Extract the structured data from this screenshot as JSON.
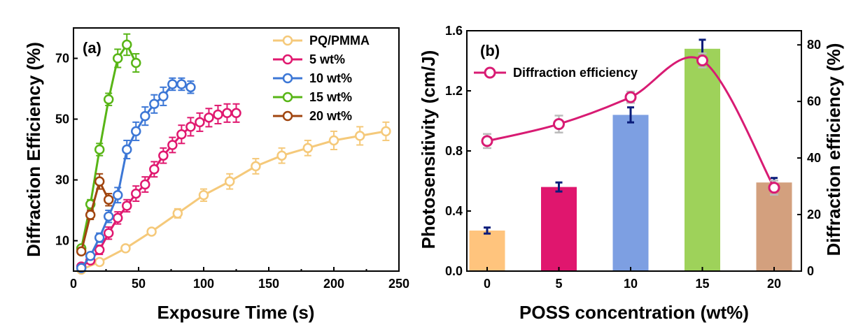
{
  "chart_data": [
    {
      "type": "line",
      "panel_label": "(a)",
      "xlabel": "Exposure Time (s)",
      "ylabel": "Diffraction Efficiency (%)",
      "xlim": [
        0,
        250
      ],
      "ylim": [
        0,
        80
      ],
      "x_ticks": [
        "0",
        "50",
        "100",
        "150",
        "200",
        "250"
      ],
      "y_ticks": [
        "10",
        "30",
        "50",
        "70"
      ],
      "grid": false,
      "legend_position": "top-right",
      "series": [
        {
          "name": "PQ/PMMA",
          "color": "#F5C97A",
          "x": [
            6,
            20,
            40,
            60,
            80,
            100,
            120,
            140,
            160,
            180,
            200,
            220,
            240
          ],
          "y": [
            0.5,
            3,
            7.5,
            13,
            19,
            25,
            29.5,
            34.5,
            38,
            40.5,
            43,
            44.5,
            46
          ],
          "err": [
            0.5,
            1,
            1,
            1,
            1.5,
            2,
            2.5,
            2.5,
            2.5,
            2.5,
            3,
            3,
            3
          ]
        },
        {
          "name": "5 wt%",
          "color": "#E0186F",
          "x": [
            6,
            13,
            20,
            27,
            34,
            41,
            48,
            55,
            62,
            69,
            76,
            83,
            90,
            97,
            104,
            111,
            118,
            125
          ],
          "y": [
            1.5,
            3.5,
            7,
            12.5,
            17.5,
            21.5,
            25.5,
            28.5,
            33.5,
            38,
            41.5,
            45,
            47.5,
            49,
            50.5,
            51.5,
            52,
            52
          ],
          "err": [
            1,
            1,
            1.5,
            2,
            2,
            2,
            2.5,
            2.5,
            2.5,
            2.5,
            2.5,
            3,
            3,
            3,
            3,
            3,
            3,
            3
          ]
        },
        {
          "name": "10 wt%",
          "color": "#3C77D6",
          "x": [
            6,
            13,
            20,
            27,
            34,
            41,
            48,
            55,
            62,
            69,
            76,
            83,
            90
          ],
          "y": [
            1,
            5,
            11,
            18,
            25,
            40,
            46,
            51,
            55,
            57.5,
            61.5,
            61.5,
            60.5
          ],
          "err": [
            1,
            1,
            1.5,
            2,
            2.5,
            3,
            3,
            3,
            3,
            3,
            2,
            2,
            2
          ]
        },
        {
          "name": "15 wt%",
          "color": "#58B516",
          "x": [
            6,
            13,
            20,
            27,
            34,
            41,
            48
          ],
          "y": [
            7.5,
            22,
            40,
            56.5,
            70,
            74.5,
            68.5
          ],
          "err": [
            1,
            1.5,
            2,
            2,
            3,
            3.5,
            3
          ]
        },
        {
          "name": "20 wt%",
          "color": "#A0450F",
          "x": [
            6,
            13,
            20,
            27
          ],
          "y": [
            6.5,
            18.5,
            29.5,
            23.5
          ],
          "err": [
            1,
            1.5,
            2.5,
            2
          ]
        }
      ]
    },
    {
      "type": "bar",
      "panel_label": "(b)",
      "xlabel": "POSS  concentration (wt%)",
      "ylabel": "Photosensitivity (cm/J)",
      "ylabel_right": "Diffraction efficiency (%)",
      "categories": [
        "0",
        "5",
        "10",
        "15",
        "20"
      ],
      "ylim": [
        0,
        1.6
      ],
      "ylim_right": [
        0,
        85
      ],
      "y_ticks": [
        "0.0",
        "0.4",
        "0.8",
        "1.2",
        "1.6"
      ],
      "y_ticks_right": [
        "0",
        "20",
        "40",
        "60",
        "80"
      ],
      "grid": false,
      "legend_position": "top-left",
      "bar_colors": [
        "#FFC47D",
        "#E0166E",
        "#7D9FE2",
        "#9ED25A",
        "#D3A07E"
      ],
      "bars": {
        "values": [
          0.27,
          0.56,
          1.04,
          1.48,
          0.59
        ],
        "err": [
          0.02,
          0.03,
          0.05,
          0.06,
          0.03
        ]
      },
      "line": {
        "name": "Diffraction efficiency",
        "color": "#D81B73",
        "values": [
          46,
          52,
          61.5,
          74.5,
          29.5
        ],
        "err": [
          2.5,
          3,
          2,
          2.5,
          2.5
        ]
      }
    }
  ]
}
